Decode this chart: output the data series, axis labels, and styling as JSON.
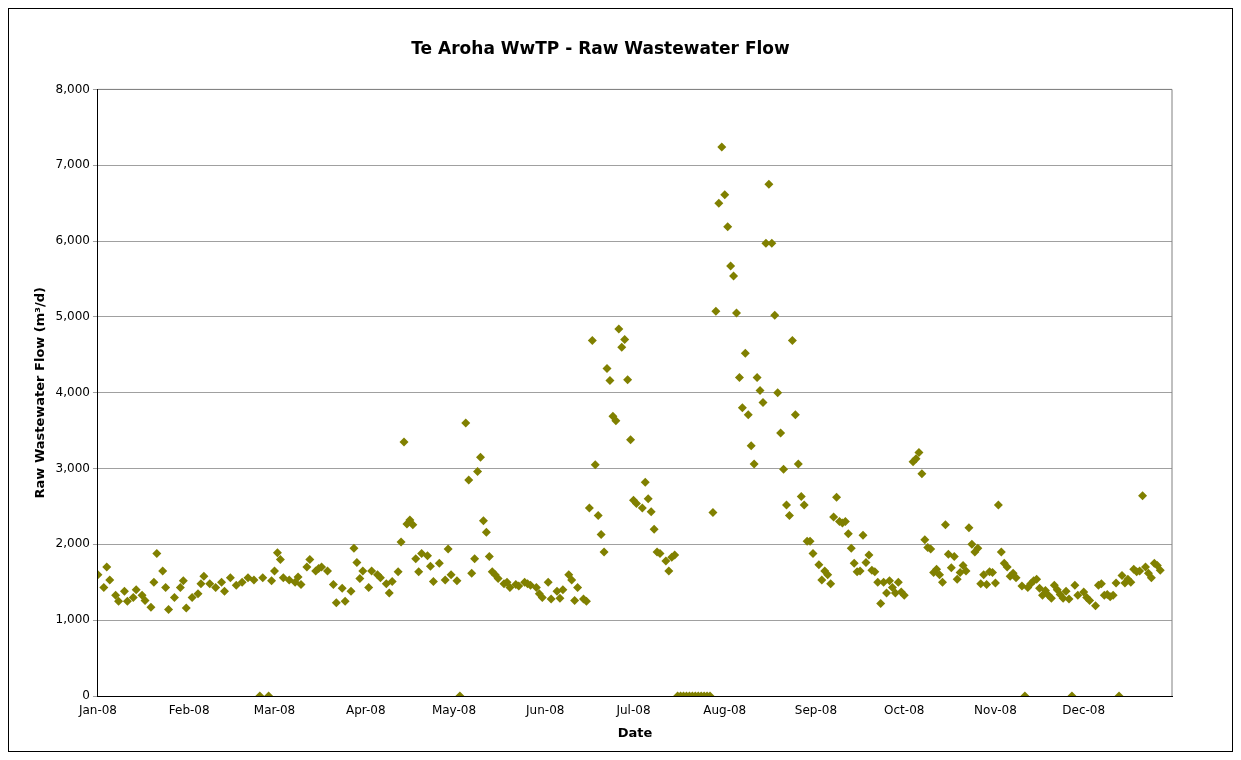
{
  "chart_data": {
    "type": "scatter",
    "title": "Te Aroha WwTP - Raw Wastewater Flow",
    "xlabel": "Date",
    "ylabel": "Raw Wastewater Flow (m³/d)",
    "marker": "diamond",
    "grid": "y",
    "color": "#808000",
    "x": [
      "2008-01-01",
      "2008-01-03",
      "2008-01-04",
      "2008-01-05",
      "2008-01-07",
      "2008-01-08",
      "2008-01-10",
      "2008-01-11",
      "2008-01-13",
      "2008-01-14",
      "2008-01-16",
      "2008-01-17",
      "2008-01-19",
      "2008-01-20",
      "2008-01-21",
      "2008-01-23",
      "2008-01-24",
      "2008-01-25",
      "2008-01-27",
      "2008-01-29",
      "2008-01-30",
      "2008-01-31",
      "2008-02-02",
      "2008-02-04",
      "2008-02-05",
      "2008-02-06",
      "2008-02-08",
      "2008-02-10",
      "2008-02-12",
      "2008-02-13",
      "2008-02-15",
      "2008-02-17",
      "2008-02-19",
      "2008-02-21",
      "2008-02-23",
      "2008-02-25",
      "2008-02-26",
      "2008-02-28",
      "2008-02-29",
      "2008-03-01",
      "2008-03-02",
      "2008-03-03",
      "2008-03-04",
      "2008-03-06",
      "2008-03-08",
      "2008-03-09",
      "2008-03-10",
      "2008-03-12",
      "2008-03-13",
      "2008-03-15",
      "2008-03-16",
      "2008-03-17",
      "2008-03-19",
      "2008-03-21",
      "2008-03-22",
      "2008-03-24",
      "2008-03-25",
      "2008-03-27",
      "2008-03-28",
      "2008-03-29",
      "2008-03-30",
      "2008-03-31",
      "2008-04-02",
      "2008-04-03",
      "2008-04-05",
      "2008-04-06",
      "2008-04-08",
      "2008-04-09",
      "2008-04-10",
      "2008-04-12",
      "2008-04-13",
      "2008-04-14",
      "2008-04-15",
      "2008-04-16",
      "2008-04-17",
      "2008-04-18",
      "2008-04-19",
      "2008-04-20",
      "2008-04-22",
      "2008-04-23",
      "2008-04-24",
      "2008-04-26",
      "2008-04-28",
      "2008-04-29",
      "2008-04-30",
      "2008-05-02",
      "2008-05-03",
      "2008-05-05",
      "2008-05-06",
      "2008-05-07",
      "2008-05-08",
      "2008-05-09",
      "2008-05-10",
      "2008-05-11",
      "2008-05-12",
      "2008-05-13",
      "2008-05-14",
      "2008-05-15",
      "2008-05-16",
      "2008-05-18",
      "2008-05-19",
      "2008-05-20",
      "2008-05-22",
      "2008-05-23",
      "2008-05-25",
      "2008-05-26",
      "2008-05-27",
      "2008-05-29",
      "2008-05-30",
      "2008-05-31",
      "2008-06-02",
      "2008-06-03",
      "2008-06-05",
      "2008-06-06",
      "2008-06-07",
      "2008-06-09",
      "2008-06-10",
      "2008-06-11",
      "2008-06-12",
      "2008-06-14",
      "2008-06-15",
      "2008-06-16",
      "2008-06-17",
      "2008-06-18",
      "2008-06-19",
      "2008-06-20",
      "2008-06-21",
      "2008-06-22",
      "2008-06-23",
      "2008-06-24",
      "2008-06-25",
      "2008-06-26",
      "2008-06-27",
      "2008-06-28",
      "2008-06-29",
      "2008-06-30",
      "2008-07-01",
      "2008-07-02",
      "2008-07-04",
      "2008-07-05",
      "2008-07-06",
      "2008-07-07",
      "2008-07-08",
      "2008-07-09",
      "2008-07-10",
      "2008-07-12",
      "2008-07-13",
      "2008-07-14",
      "2008-07-15",
      "2008-07-16",
      "2008-07-17",
      "2008-07-18",
      "2008-07-19",
      "2008-07-20",
      "2008-07-21",
      "2008-07-22",
      "2008-07-23",
      "2008-07-24",
      "2008-07-25",
      "2008-07-26",
      "2008-07-27",
      "2008-07-28",
      "2008-07-29",
      "2008-07-30",
      "2008-07-31",
      "2008-08-01",
      "2008-08-02",
      "2008-08-03",
      "2008-08-04",
      "2008-08-05",
      "2008-08-06",
      "2008-08-07",
      "2008-08-08",
      "2008-08-09",
      "2008-08-10",
      "2008-08-11",
      "2008-08-12",
      "2008-08-13",
      "2008-08-14",
      "2008-08-15",
      "2008-08-16",
      "2008-08-17",
      "2008-08-18",
      "2008-08-19",
      "2008-08-20",
      "2008-08-21",
      "2008-08-22",
      "2008-08-23",
      "2008-08-24",
      "2008-08-25",
      "2008-08-26",
      "2008-08-27",
      "2008-08-28",
      "2008-08-29",
      "2008-08-30",
      "2008-08-31",
      "2008-09-02",
      "2008-09-03",
      "2008-09-04",
      "2008-09-05",
      "2008-09-06",
      "2008-09-07",
      "2008-09-08",
      "2008-09-09",
      "2008-09-10",
      "2008-09-11",
      "2008-09-12",
      "2008-09-13",
      "2008-09-14",
      "2008-09-15",
      "2008-09-16",
      "2008-09-17",
      "2008-09-18",
      "2008-09-19",
      "2008-09-20",
      "2008-09-21",
      "2008-09-22",
      "2008-09-23",
      "2008-09-24",
      "2008-09-25",
      "2008-09-26",
      "2008-09-27",
      "2008-09-28",
      "2008-09-29",
      "2008-09-30",
      "2008-10-01",
      "2008-10-04",
      "2008-10-05",
      "2008-10-06",
      "2008-10-07",
      "2008-10-08",
      "2008-10-09",
      "2008-10-10",
      "2008-10-11",
      "2008-10-12",
      "2008-10-13",
      "2008-10-14",
      "2008-10-15",
      "2008-10-16",
      "2008-10-17",
      "2008-10-18",
      "2008-10-19",
      "2008-10-20",
      "2008-10-21",
      "2008-10-22",
      "2008-10-23",
      "2008-10-24",
      "2008-10-25",
      "2008-10-26",
      "2008-10-27",
      "2008-10-28",
      "2008-10-29",
      "2008-10-30",
      "2008-10-31",
      "2008-11-01",
      "2008-11-02",
      "2008-11-03",
      "2008-11-04",
      "2008-11-05",
      "2008-11-06",
      "2008-11-07",
      "2008-11-08",
      "2008-11-10",
      "2008-11-11",
      "2008-11-12",
      "2008-11-13",
      "2008-11-14",
      "2008-11-15",
      "2008-11-16",
      "2008-11-17",
      "2008-11-18",
      "2008-11-19",
      "2008-11-20",
      "2008-11-21",
      "2008-11-22",
      "2008-11-23",
      "2008-11-24",
      "2008-11-25",
      "2008-11-26",
      "2008-11-27",
      "2008-11-28",
      "2008-11-29",
      "2008-12-01",
      "2008-12-02",
      "2008-12-03",
      "2008-12-05",
      "2008-12-06",
      "2008-12-07",
      "2008-12-08",
      "2008-12-09",
      "2008-12-10",
      "2008-12-11",
      "2008-12-12",
      "2008-12-13",
      "2008-12-14",
      "2008-12-15",
      "2008-12-16",
      "2008-12-17",
      "2008-12-18",
      "2008-12-19",
      "2008-12-20",
      "2008-12-21",
      "2008-12-22",
      "2008-12-23",
      "2008-12-24",
      "2008-12-25",
      "2008-12-26",
      "2008-12-27"
    ],
    "values": [
      1600,
      1430,
      1700,
      1530,
      1330,
      1250,
      1380,
      1250,
      1300,
      1400,
      1330,
      1260,
      1170,
      1500,
      1880,
      1650,
      1430,
      1140,
      1300,
      1430,
      1520,
      1160,
      1300,
      1350,
      1480,
      1580,
      1480,
      1430,
      1500,
      1380,
      1560,
      1460,
      1500,
      1560,
      1530,
      0,
      1560,
      0,
      1520,
      1650,
      1890,
      1800,
      1560,
      1530,
      1500,
      1570,
      1470,
      1700,
      1800,
      1650,
      1680,
      1700,
      1650,
      1470,
      1230,
      1420,
      1250,
      1380,
      1950,
      1760,
      1550,
      1650,
      1430,
      1650,
      1600,
      1560,
      1480,
      1360,
      1510,
      1640,
      2030,
      3350,
      2270,
      2320,
      2260,
      1810,
      1640,
      1880,
      1850,
      1710,
      1510,
      1750,
      1530,
      1940,
      1600,
      1520,
      0,
      3600,
      2850,
      1620,
      1810,
      2960,
      3150,
      2310,
      2160,
      1840,
      1640,
      1600,
      1550,
      1480,
      1500,
      1430,
      1470,
      1450,
      1500,
      1480,
      1460,
      1430,
      1350,
      1300,
      1500,
      1280,
      1380,
      1290,
      1400,
      1600,
      1530,
      1260,
      1430,
      1280,
      1250,
      2480,
      4690,
      3050,
      2380,
      2130,
      1900,
      4320,
      4160,
      3690,
      3630,
      4840,
      4600,
      4700,
      4170,
      3380,
      2580,
      2540,
      2480,
      2820,
      2600,
      2430,
      2200,
      1900,
      1880,
      1780,
      1650,
      1830,
      1860,
      0,
      0,
      0,
      0,
      0,
      0,
      0,
      0,
      0,
      0,
      0,
      0,
      2420,
      5075,
      6500,
      7240,
      6610,
      6190,
      5670,
      5540,
      5050,
      4200,
      3800,
      4520,
      3710,
      3300,
      3060,
      4200,
      4030,
      3870,
      5970,
      6750,
      5970,
      5020,
      4000,
      3470,
      2990,
      2520,
      2380,
      4690,
      3710,
      3060,
      2630,
      2520,
      2040,
      2040,
      1880,
      1730,
      1530,
      1650,
      1600,
      1480,
      2360,
      2620,
      2300,
      2280,
      2300,
      2140,
      1950,
      1750,
      1640,
      1650,
      2120,
      1760,
      1860,
      1660,
      1640,
      1500,
      1220,
      1500,
      1360,
      1520,
      1430,
      1360,
      1500,
      1370,
      1330,
      3090,
      3130,
      3210,
      2930,
      2060,
      1960,
      1940,
      1630,
      1670,
      1600,
      1500,
      2260,
      1870,
      1690,
      1840,
      1540,
      1630,
      1720,
      1650,
      2220,
      2000,
      1900,
      1950,
      1480,
      1600,
      1470,
      1640,
      1630,
      1490,
      2520,
      1900,
      1750,
      1700,
      1580,
      1620,
      1560,
      1450,
      0,
      1430,
      1480,
      1520,
      1540,
      1420,
      1330,
      1390,
      1330,
      1290,
      1460,
      1400,
      1340,
      1290,
      1380,
      1280,
      0,
      1460,
      1330,
      1370,
      1300,
      1260,
      1190,
      1460,
      1480,
      1330,
      1340,
      1310,
      1330,
      1490,
      0,
      1590,
      1490,
      1540,
      1500,
      1670,
      1640,
      1650,
      2640,
      1700,
      1620,
      1560,
      1750,
      1720,
      1660
    ],
    "xlim": [
      "2008-01-01",
      "2008-12-31"
    ],
    "xticks": [
      {
        "value": "2008-01-01",
        "label": "Jan-08"
      },
      {
        "value": "2008-02-01",
        "label": "Feb-08"
      },
      {
        "value": "2008-03-01",
        "label": "Mar-08"
      },
      {
        "value": "2008-04-01",
        "label": "Apr-08"
      },
      {
        "value": "2008-05-01",
        "label": "May-08"
      },
      {
        "value": "2008-06-01",
        "label": "Jun-08"
      },
      {
        "value": "2008-07-01",
        "label": "Jul-08"
      },
      {
        "value": "2008-08-01",
        "label": "Aug-08"
      },
      {
        "value": "2008-09-01",
        "label": "Sep-08"
      },
      {
        "value": "2008-10-01",
        "label": "Oct-08"
      },
      {
        "value": "2008-11-01",
        "label": "Nov-08"
      },
      {
        "value": "2008-12-01",
        "label": "Dec-08"
      }
    ],
    "ylim": [
      0,
      8000
    ],
    "yticks": [
      0,
      {
        "value": 1000,
        "label": "1,000"
      },
      {
        "value": 2000,
        "label": "2,000"
      },
      {
        "value": 3000,
        "label": "3,000"
      },
      {
        "value": 4000,
        "label": "4,000"
      },
      {
        "value": 5000,
        "label": "5,000"
      },
      {
        "value": 6000,
        "label": "6,000"
      },
      {
        "value": 7000,
        "label": "7,000"
      },
      {
        "value": 8000,
        "label": "8,000"
      }
    ]
  }
}
